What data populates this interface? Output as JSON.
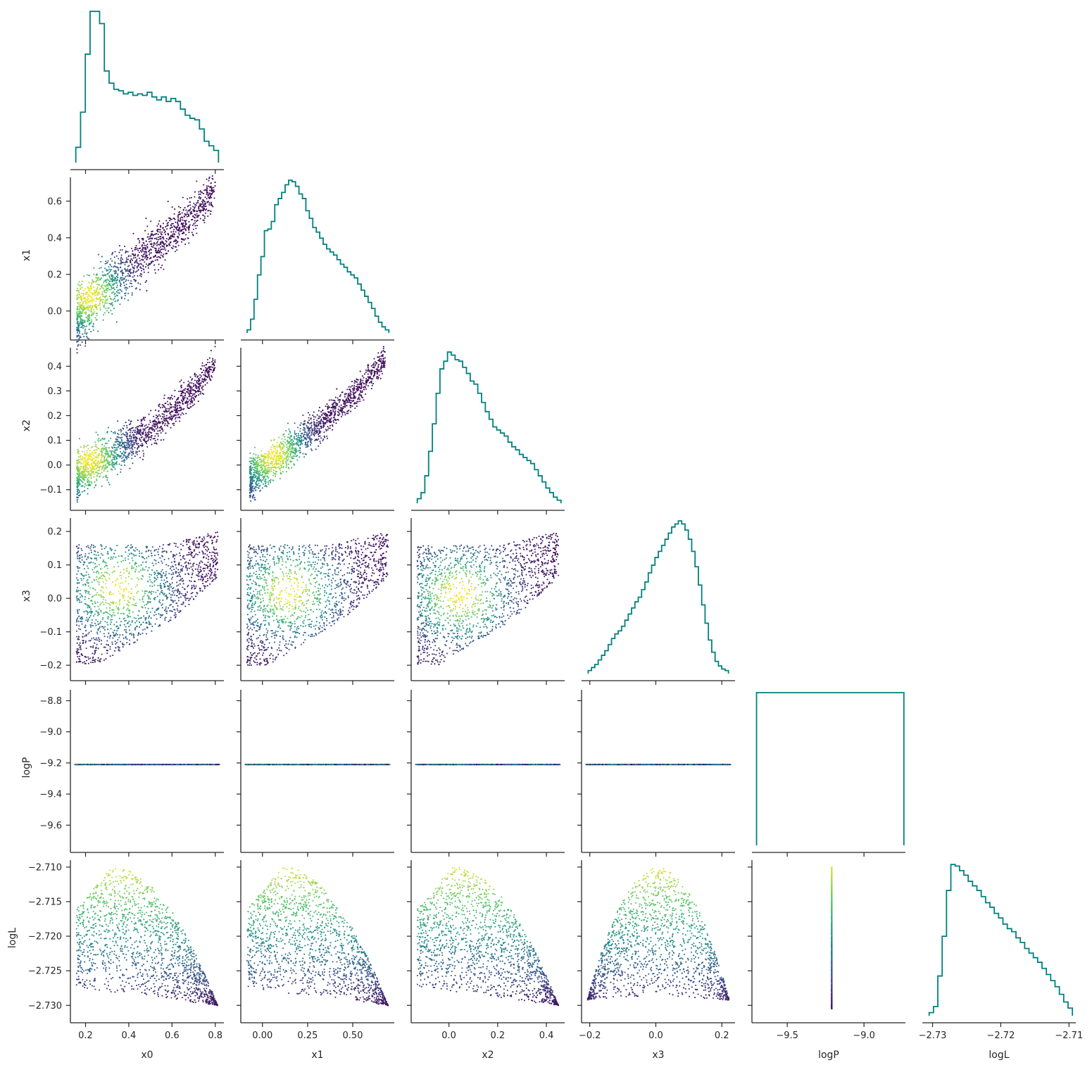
{
  "chart_data": {
    "type": "corner",
    "variables": [
      "x0",
      "x1",
      "x2",
      "x3",
      "logP",
      "logL"
    ],
    "colors": {
      "histogram": "#008080",
      "colormap": "viridis",
      "colormap_stops": [
        "#440154",
        "#3b528b",
        "#21908c",
        "#5dc963",
        "#fde725"
      ],
      "axis": "#262626"
    },
    "grid": false,
    "ranges": {
      "x0": [
        0.13,
        0.84
      ],
      "x1": [
        -0.12,
        0.73
      ],
      "x2": [
        -0.155,
        0.475
      ],
      "x3": [
        -0.225,
        0.24
      ],
      "logP": [
        -9.73,
        -8.73
      ],
      "logL": [
        -2.7315,
        -2.709
      ]
    },
    "ticks": {
      "x0": {
        "values": [
          0.2,
          0.4,
          0.6,
          0.8
        ],
        "labels": [
          "0.2",
          "0.4",
          "0.6",
          "0.8"
        ]
      },
      "x1_y": {
        "values": [
          0.0,
          0.2,
          0.4,
          0.6
        ],
        "labels": [
          "0.0",
          "0.2",
          "0.4",
          "0.6"
        ]
      },
      "x1_x": {
        "values": [
          0.0,
          0.25,
          0.5
        ],
        "labels": [
          "0.00",
          "0.25",
          "0.50"
        ]
      },
      "x2": {
        "values": [
          -0.1,
          0.0,
          0.1,
          0.2,
          0.3,
          0.4
        ],
        "labels": [
          "−0.1",
          "0.0",
          "0.1",
          "0.2",
          "0.3",
          "0.4"
        ]
      },
      "x2_x": {
        "values": [
          0.0,
          0.2,
          0.4
        ],
        "labels": [
          "0.0",
          "0.2",
          "0.4"
        ]
      },
      "x3_y": {
        "values": [
          -0.2,
          -0.1,
          0.0,
          0.1,
          0.2
        ],
        "labels": [
          "−0.2",
          "−0.1",
          "0.0",
          "0.1",
          "0.2"
        ]
      },
      "x3_x": {
        "values": [
          -0.2,
          0.0,
          0.2
        ],
        "labels": [
          "−0.2",
          "0.0",
          "0.2"
        ]
      },
      "logP_y": {
        "values": [
          -9.6,
          -9.4,
          -9.2,
          -9.0,
          -8.8
        ],
        "labels": [
          "−9.6",
          "−9.4",
          "−9.2",
          "−9.0",
          "−8.8"
        ]
      },
      "logP_x": {
        "values": [
          -9.5,
          -9.0
        ],
        "labels": [
          "−9.5",
          "−9.0"
        ]
      },
      "logL_y": {
        "values": [
          -2.73,
          -2.725,
          -2.72,
          -2.715,
          -2.71
        ],
        "labels": [
          "−2.730",
          "−2.725",
          "−2.720",
          "−2.715",
          "−2.710"
        ]
      },
      "logL_x": {
        "values": [
          -2.73,
          -2.72,
          -2.71
        ],
        "labels": [
          "−2.73",
          "−2.72",
          "−2.71"
        ]
      }
    },
    "histograms": {
      "x0": {
        "bins": [
          0.155,
          0.815
        ],
        "values": [
          0.1,
          0.33,
          0.71,
          0.99,
          0.99,
          0.91,
          0.6,
          0.52,
          0.48,
          0.47,
          0.45,
          0.46,
          0.44,
          0.45,
          0.44,
          0.46,
          0.43,
          0.41,
          0.43,
          0.4,
          0.42,
          0.4,
          0.35,
          0.31,
          0.29,
          0.28,
          0.22,
          0.14,
          0.11,
          0.08
        ]
      },
      "x1": {
        "bins": [
          -0.085,
          0.7
        ],
        "values": [
          0.02,
          0.09,
          0.22,
          0.38,
          0.5,
          0.67,
          0.68,
          0.73,
          0.84,
          0.88,
          0.92,
          0.97,
          1.0,
          0.99,
          0.96,
          0.91,
          0.88,
          0.8,
          0.75,
          0.69,
          0.66,
          0.62,
          0.58,
          0.55,
          0.53,
          0.51,
          0.48,
          0.45,
          0.43,
          0.4,
          0.38,
          0.36,
          0.32,
          0.28,
          0.24,
          0.2,
          0.16,
          0.11,
          0.07,
          0.04,
          0.02
        ]
      },
      "x2": {
        "bins": [
          -0.13,
          0.46
        ],
        "values": [
          0.03,
          0.07,
          0.18,
          0.34,
          0.52,
          0.72,
          0.88,
          0.93,
          0.99,
          0.97,
          0.94,
          0.93,
          0.89,
          0.85,
          0.8,
          0.78,
          0.72,
          0.66,
          0.6,
          0.55,
          0.5,
          0.48,
          0.46,
          0.44,
          0.4,
          0.37,
          0.35,
          0.32,
          0.3,
          0.28,
          0.26,
          0.22,
          0.18,
          0.14,
          0.1,
          0.07,
          0.04,
          0.02
        ]
      },
      "x3": {
        "bins": [
          -0.205,
          0.22
        ],
        "values": [
          0.02,
          0.04,
          0.06,
          0.09,
          0.12,
          0.15,
          0.19,
          0.23,
          0.26,
          0.28,
          0.31,
          0.35,
          0.39,
          0.43,
          0.47,
          0.5,
          0.55,
          0.6,
          0.66,
          0.71,
          0.76,
          0.8,
          0.84,
          0.88,
          0.92,
          0.96,
          0.98,
          1.0,
          0.98,
          0.94,
          0.88,
          0.8,
          0.7,
          0.58,
          0.45,
          0.33,
          0.22,
          0.14,
          0.08,
          0.05,
          0.03,
          0.02
        ]
      },
      "logP": {
        "bins": [
          -9.7,
          -8.74
        ],
        "values": [
          1.0
        ]
      },
      "logL": {
        "bins": [
          -2.7305,
          -2.7095
        ],
        "values": [
          0.02,
          0.06,
          0.26,
          0.52,
          0.82,
          0.99,
          0.98,
          0.95,
          0.92,
          0.88,
          0.85,
          0.82,
          0.78,
          0.74,
          0.71,
          0.67,
          0.64,
          0.6,
          0.57,
          0.55,
          0.51,
          0.48,
          0.44,
          0.41,
          0.38,
          0.35,
          0.31,
          0.27,
          0.23,
          0.19,
          0.14,
          0.09,
          0.05
        ]
      }
    },
    "scatter": [
      {
        "x": "x0",
        "y": "x1",
        "shape": "band",
        "center": [
          [
            0.16,
            -0.03
          ],
          [
            0.3,
            0.13
          ],
          [
            0.5,
            0.33
          ],
          [
            0.7,
            0.53
          ],
          [
            0.8,
            0.66
          ]
        ],
        "width": 0.07,
        "density_peak": [
          0.22,
          0.08
        ]
      },
      {
        "x": "x0",
        "y": "x2",
        "shape": "band",
        "center": [
          [
            0.16,
            -0.04
          ],
          [
            0.3,
            0.04
          ],
          [
            0.5,
            0.14
          ],
          [
            0.7,
            0.3
          ],
          [
            0.8,
            0.42
          ]
        ],
        "width": 0.04,
        "density_peak": [
          0.22,
          0.02
        ]
      },
      {
        "x": "x1",
        "y": "x2",
        "shape": "band",
        "center": [
          [
            -0.07,
            -0.06
          ],
          [
            0.1,
            0.04
          ],
          [
            0.3,
            0.15
          ],
          [
            0.5,
            0.28
          ],
          [
            0.68,
            0.43
          ]
        ],
        "width": 0.035,
        "density_peak": [
          0.06,
          0.04
        ]
      },
      {
        "x": "x0",
        "y": "x3",
        "shape": "wedge",
        "density_peak": [
          0.33,
          0.03
        ]
      },
      {
        "x": "x1",
        "y": "x3",
        "shape": "wedge",
        "density_peak": [
          0.15,
          0.02
        ]
      },
      {
        "x": "x2",
        "y": "x3",
        "shape": "wedge",
        "density_peak": [
          0.03,
          0.01
        ]
      },
      {
        "x": "x0",
        "y": "logP",
        "shape": "line",
        "value": -9.21
      },
      {
        "x": "x1",
        "y": "logP",
        "shape": "line",
        "value": -9.21
      },
      {
        "x": "x2",
        "y": "logP",
        "shape": "line",
        "value": -9.21
      },
      {
        "x": "x3",
        "y": "logP",
        "shape": "line",
        "value": -9.21
      },
      {
        "x": "x0",
        "y": "logL",
        "shape": "fan",
        "color_by": "logL"
      },
      {
        "x": "x1",
        "y": "logL",
        "shape": "fan",
        "color_by": "logL"
      },
      {
        "x": "x2",
        "y": "logL",
        "shape": "fan",
        "color_by": "logL"
      },
      {
        "x": "x3",
        "y": "logL",
        "shape": "dome",
        "color_by": "logL"
      },
      {
        "x": "logP",
        "y": "logL",
        "shape": "vline",
        "value": -9.21,
        "color_by": "logL"
      }
    ]
  }
}
